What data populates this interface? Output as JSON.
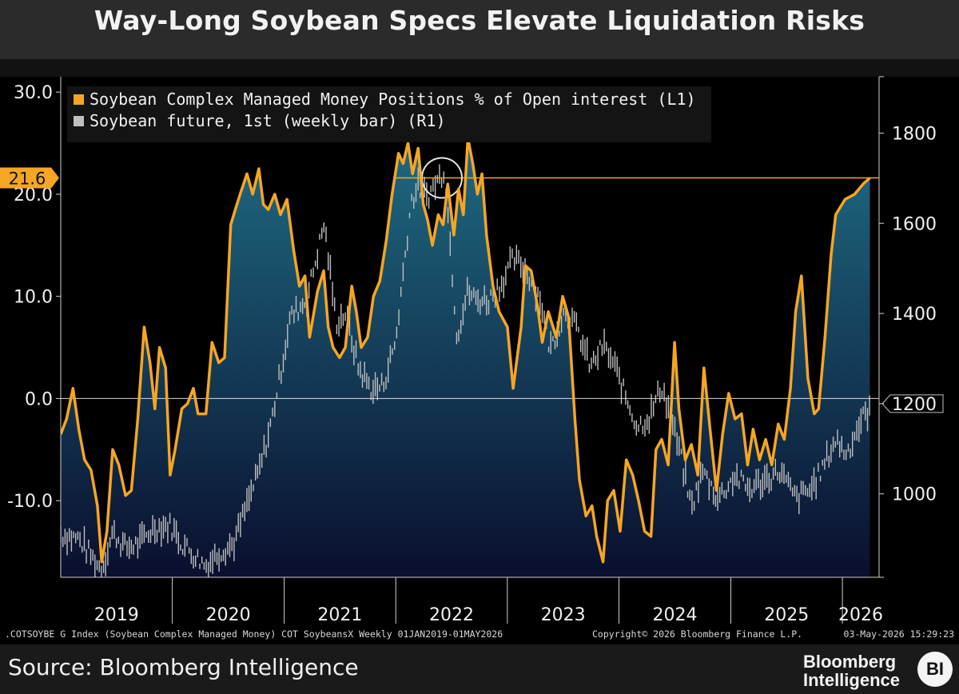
{
  "title": "Way-Long Soybean Specs Elevate Liquidation Risks",
  "footnote": {
    "index_text": ".COTSOYBE G Index (Soybean Complex Managed Money) COT SoybeansX Weekly 01JAN2019-01MAY2026",
    "copyright": "Copyright© 2026 Bloomberg Finance L.P.",
    "timestamp": "03-May-2026 15:29:23"
  },
  "source": "Source: Bloomberg Intelligence",
  "logo": {
    "line1": "Bloomberg",
    "line2": "Intelligence",
    "badge": "BI"
  },
  "colors": {
    "managed_money": "#f5a623",
    "futures": "#bfbfbf",
    "area_top": "#1f6a82",
    "area_bottom": "#0a0f2e",
    "background": "#000000"
  },
  "chart_data": {
    "type": "line",
    "x_range": [
      "2019-01-01",
      "2026-05-01"
    ],
    "x_tick_labels": [
      "2019",
      "2020",
      "2021",
      "2022",
      "2023",
      "2024",
      "2025",
      "2026"
    ],
    "left_axis": {
      "ticks": [
        30.0,
        20.0,
        10.0,
        0.0,
        -10.0
      ],
      "tick_labels": [
        "30.0",
        "20.0",
        "10.0",
        "0.0",
        "-10.0"
      ],
      "range": [
        -17.5,
        31.5
      ]
    },
    "right_axis": {
      "ticks": [
        1800,
        1600,
        1400,
        1200,
        1000
      ],
      "range": [
        815,
        1925
      ]
    },
    "last_value_label": "21.6",
    "last_value": 21.6,
    "zero_line": 0.0,
    "highlight": {
      "date": "2022-06-01",
      "value": 21.6
    },
    "legend": {
      "placement": "top-left"
    },
    "series": [
      {
        "name": "Soybean Complex Managed Money Positions % of Open interest (L1)",
        "axis": "left",
        "points": [
          [
            "2019-01-01",
            -3.5
          ],
          [
            "2019-01-20",
            -2.0
          ],
          [
            "2019-02-10",
            1.0
          ],
          [
            "2019-03-01",
            -3.0
          ],
          [
            "2019-03-20",
            -6.0
          ],
          [
            "2019-04-10",
            -7.0
          ],
          [
            "2019-05-01",
            -10.5
          ],
          [
            "2019-05-15",
            -16.0
          ],
          [
            "2019-06-01",
            -13.0
          ],
          [
            "2019-06-20",
            -5.0
          ],
          [
            "2019-07-10",
            -6.5
          ],
          [
            "2019-08-01",
            -9.5
          ],
          [
            "2019-08-20",
            -9.0
          ],
          [
            "2019-09-10",
            -2.0
          ],
          [
            "2019-10-01",
            7.0
          ],
          [
            "2019-10-20",
            3.5
          ],
          [
            "2019-11-05",
            -1.0
          ],
          [
            "2019-11-20",
            5.0
          ],
          [
            "2019-12-10",
            3.0
          ],
          [
            "2019-12-25",
            -7.5
          ],
          [
            "2020-01-10",
            -5.0
          ],
          [
            "2020-02-01",
            -1.0
          ],
          [
            "2020-02-20",
            -0.5
          ],
          [
            "2020-03-10",
            1.0
          ],
          [
            "2020-03-25",
            -1.5
          ],
          [
            "2020-04-20",
            -1.5
          ],
          [
            "2020-05-10",
            5.5
          ],
          [
            "2020-06-01",
            3.5
          ],
          [
            "2020-06-20",
            4.0
          ],
          [
            "2020-07-10",
            17.0
          ],
          [
            "2020-07-25",
            18.5
          ],
          [
            "2020-08-10",
            20.0
          ],
          [
            "2020-09-01",
            22.0
          ],
          [
            "2020-09-20",
            20.0
          ],
          [
            "2020-10-10",
            22.5
          ],
          [
            "2020-10-25",
            19.0
          ],
          [
            "2020-11-10",
            18.5
          ],
          [
            "2020-12-01",
            20.0
          ],
          [
            "2020-12-20",
            18.0
          ],
          [
            "2021-01-10",
            19.5
          ],
          [
            "2021-02-01",
            14.5
          ],
          [
            "2021-02-20",
            11.0
          ],
          [
            "2021-03-10",
            12.0
          ],
          [
            "2021-03-25",
            6.0
          ],
          [
            "2021-04-20",
            10.5
          ],
          [
            "2021-05-10",
            12.5
          ],
          [
            "2021-05-25",
            7.0
          ],
          [
            "2021-06-10",
            5.0
          ],
          [
            "2021-07-01",
            4.0
          ],
          [
            "2021-07-20",
            5.0
          ],
          [
            "2021-08-10",
            11.0
          ],
          [
            "2021-08-25",
            8.5
          ],
          [
            "2021-09-10",
            5.0
          ],
          [
            "2021-10-01",
            6.0
          ],
          [
            "2021-10-20",
            10.0
          ],
          [
            "2021-11-10",
            11.5
          ],
          [
            "2021-12-01",
            15.5
          ],
          [
            "2021-12-20",
            20.0
          ],
          [
            "2022-01-10",
            24.0
          ],
          [
            "2022-01-25",
            23.0
          ],
          [
            "2022-02-10",
            25.0
          ],
          [
            "2022-02-25",
            22.0
          ],
          [
            "2022-03-15",
            24.5
          ],
          [
            "2022-04-01",
            19.0
          ],
          [
            "2022-04-15",
            17.5
          ],
          [
            "2022-05-01",
            15.0
          ],
          [
            "2022-05-20",
            18.0
          ],
          [
            "2022-06-05",
            17.0
          ],
          [
            "2022-06-20",
            21.0
          ],
          [
            "2022-07-10",
            16.0
          ],
          [
            "2022-07-25",
            20.5
          ],
          [
            "2022-08-10",
            18.0
          ],
          [
            "2022-08-25",
            25.5
          ],
          [
            "2022-09-10",
            23.0
          ],
          [
            "2022-09-25",
            20.0
          ],
          [
            "2022-10-10",
            22.0
          ],
          [
            "2022-10-25",
            16.0
          ],
          [
            "2022-11-15",
            11.0
          ],
          [
            "2022-12-05",
            8.5
          ],
          [
            "2023-01-01",
            7.0
          ],
          [
            "2023-01-20",
            1.0
          ],
          [
            "2023-02-15",
            7.0
          ],
          [
            "2023-03-01",
            13.0
          ],
          [
            "2023-03-20",
            12.5
          ],
          [
            "2023-04-10",
            9.0
          ],
          [
            "2023-04-25",
            5.5
          ],
          [
            "2023-05-15",
            8.5
          ],
          [
            "2023-06-10",
            6.0
          ],
          [
            "2023-07-01",
            10.0
          ],
          [
            "2023-07-20",
            8.0
          ],
          [
            "2023-08-10",
            -2.0
          ],
          [
            "2023-08-25",
            -8.0
          ],
          [
            "2023-09-15",
            -11.5
          ],
          [
            "2023-10-05",
            -10.5
          ],
          [
            "2023-10-20",
            -13.5
          ],
          [
            "2023-11-10",
            -16.0
          ],
          [
            "2023-11-25",
            -10.0
          ],
          [
            "2023-12-15",
            -9.0
          ],
          [
            "2024-01-05",
            -13.0
          ],
          [
            "2024-01-25",
            -6.0
          ],
          [
            "2024-02-15",
            -7.5
          ],
          [
            "2024-03-05",
            -10.0
          ],
          [
            "2024-03-25",
            -13.0
          ],
          [
            "2024-04-15",
            -13.5
          ],
          [
            "2024-05-01",
            -5.0
          ],
          [
            "2024-05-20",
            -4.0
          ],
          [
            "2024-06-10",
            -6.5
          ],
          [
            "2024-07-01",
            5.5
          ],
          [
            "2024-07-15",
            -1.0
          ],
          [
            "2024-08-05",
            -6.0
          ],
          [
            "2024-08-25",
            -4.5
          ],
          [
            "2024-09-15",
            -7.5
          ],
          [
            "2024-10-05",
            3.0
          ],
          [
            "2024-10-25",
            -3.0
          ],
          [
            "2024-11-15",
            -9.0
          ],
          [
            "2024-12-05",
            -3.5
          ],
          [
            "2024-12-25",
            0.5
          ],
          [
            "2025-01-15",
            -2.0
          ],
          [
            "2025-02-05",
            -1.5
          ],
          [
            "2025-02-25",
            -6.5
          ],
          [
            "2025-03-15",
            -3.0
          ],
          [
            "2025-04-05",
            -6.0
          ],
          [
            "2025-04-25",
            -4.0
          ],
          [
            "2025-05-15",
            -6.5
          ],
          [
            "2025-06-05",
            -2.5
          ],
          [
            "2025-06-25",
            -4.0
          ],
          [
            "2025-07-15",
            1.0
          ],
          [
            "2025-08-01",
            8.5
          ],
          [
            "2025-08-20",
            12.0
          ],
          [
            "2025-09-10",
            2.0
          ],
          [
            "2025-10-01",
            -1.5
          ],
          [
            "2025-10-15",
            -1.0
          ],
          [
            "2025-11-05",
            6.0
          ],
          [
            "2025-11-25",
            14.0
          ],
          [
            "2025-12-10",
            18.0
          ],
          [
            "2026-01-10",
            19.5
          ],
          [
            "2026-02-10",
            20.0
          ],
          [
            "2026-03-10",
            21.0
          ],
          [
            "2026-04-01",
            21.6
          ]
        ]
      },
      {
        "name": "Soybean future, 1st (weekly bar) (R1)",
        "axis": "right",
        "points": [
          [
            "2019-01-01",
            910
          ],
          [
            "2019-03-01",
            900
          ],
          [
            "2019-05-15",
            830
          ],
          [
            "2019-06-20",
            915
          ],
          [
            "2019-08-01",
            880
          ],
          [
            "2019-09-15",
            890
          ],
          [
            "2019-11-01",
            925
          ],
          [
            "2019-12-25",
            930
          ],
          [
            "2020-02-01",
            890
          ],
          [
            "2020-04-20",
            840
          ],
          [
            "2020-06-01",
            870
          ],
          [
            "2020-07-20",
            890
          ],
          [
            "2020-09-01",
            975
          ],
          [
            "2020-10-15",
            1060
          ],
          [
            "2020-11-20",
            1160
          ],
          [
            "2020-12-31",
            1310
          ],
          [
            "2021-01-20",
            1390
          ],
          [
            "2021-03-15",
            1430
          ],
          [
            "2021-05-12",
            1600
          ],
          [
            "2021-06-20",
            1380
          ],
          [
            "2021-07-20",
            1400
          ],
          [
            "2021-09-01",
            1280
          ],
          [
            "2021-10-15",
            1230
          ],
          [
            "2021-11-20",
            1240
          ],
          [
            "2022-01-01",
            1340
          ],
          [
            "2022-02-20",
            1650
          ],
          [
            "2022-03-15",
            1680
          ],
          [
            "2022-04-15",
            1660
          ],
          [
            "2022-06-10",
            1720
          ],
          [
            "2022-07-20",
            1350
          ],
          [
            "2022-08-25",
            1450
          ],
          [
            "2022-09-20",
            1430
          ],
          [
            "2022-11-01",
            1430
          ],
          [
            "2022-12-15",
            1470
          ],
          [
            "2023-01-20",
            1520
          ],
          [
            "2023-03-01",
            1500
          ],
          [
            "2023-04-20",
            1430
          ],
          [
            "2023-05-20",
            1320
          ],
          [
            "2023-07-10",
            1410
          ],
          [
            "2023-08-20",
            1360
          ],
          [
            "2023-10-01",
            1280
          ],
          [
            "2023-11-10",
            1330
          ],
          [
            "2023-12-20",
            1280
          ],
          [
            "2024-01-20",
            1220
          ],
          [
            "2024-03-01",
            1150
          ],
          [
            "2024-04-10",
            1170
          ],
          [
            "2024-05-20",
            1240
          ],
          [
            "2024-07-15",
            1100
          ],
          [
            "2024-08-25",
            970
          ],
          [
            "2024-10-01",
            1050
          ],
          [
            "2024-11-20",
            990
          ],
          [
            "2025-01-15",
            1040
          ],
          [
            "2025-03-01",
            1010
          ],
          [
            "2025-04-20",
            1030
          ],
          [
            "2025-06-10",
            1050
          ],
          [
            "2025-08-01",
            990
          ],
          [
            "2025-09-20",
            1010
          ],
          [
            "2025-10-30",
            1060
          ],
          [
            "2025-12-10",
            1120
          ],
          [
            "2026-01-15",
            1090
          ],
          [
            "2026-03-01",
            1160
          ],
          [
            "2026-04-01",
            1190
          ]
        ]
      }
    ]
  }
}
